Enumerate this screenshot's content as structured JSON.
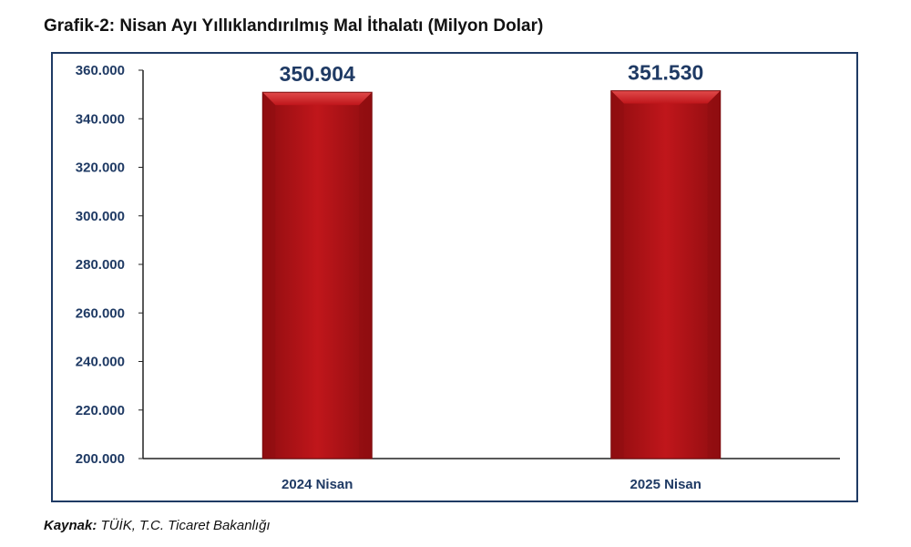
{
  "title": "Grafik-2: Nisan Ayı Yıllıklandırılmış Mal İthalatı (Milyon Dolar)",
  "source": {
    "label": "Kaynak:",
    "text": "TÜİK, T.C. Ticaret Bakanlığı"
  },
  "colors": {
    "bar": "#c0161b",
    "bar_dark": "#8f0d10",
    "bar_light": "#e04a4a",
    "axis_text": "#1f3a64",
    "frame": "#1f3a64"
  },
  "chart_data": {
    "type": "bar",
    "title": "Grafik-2: Nisan Ayı Yıllıklandırılmış Mal İthalatı (Milyon Dolar)",
    "categories": [
      "2024 Nisan",
      "2025 Nisan"
    ],
    "values": [
      350904,
      351530
    ],
    "data_labels": [
      "350.904",
      "351.530"
    ],
    "xlabel": "",
    "ylabel": "",
    "ylim": [
      200000,
      360000
    ],
    "yticks": [
      200000,
      220000,
      240000,
      260000,
      280000,
      300000,
      320000,
      340000,
      360000
    ],
    "ytick_labels": [
      "200.000",
      "220.000",
      "240.000",
      "260.000",
      "280.000",
      "300.000",
      "320.000",
      "340.000",
      "360.000"
    ],
    "grid": false,
    "legend": "none"
  }
}
